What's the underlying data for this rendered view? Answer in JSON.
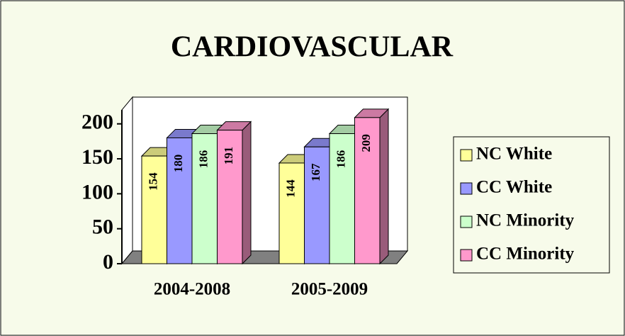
{
  "chart_data": {
    "type": "bar3d",
    "title": "CARDIOVASCULAR",
    "categories": [
      "2004-2008",
      "2005-2009"
    ],
    "series": [
      {
        "name": "NC White",
        "color": "#ffff99",
        "values": [
          154,
          144
        ]
      },
      {
        "name": "CC White",
        "color": "#9999ff",
        "values": [
          180,
          167
        ]
      },
      {
        "name": "NC Minority",
        "color": "#ccffcc",
        "values": [
          186,
          186
        ]
      },
      {
        "name": "CC Minority",
        "color": "#ff99cc",
        "values": [
          191,
          209
        ]
      }
    ],
    "ylim": [
      0,
      220
    ],
    "yticks": [
      0,
      50,
      100,
      150,
      200
    ],
    "legend": "right"
  }
}
